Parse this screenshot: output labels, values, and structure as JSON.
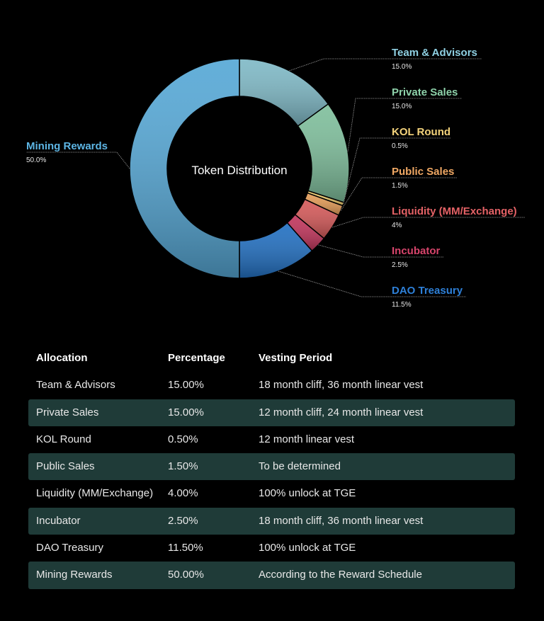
{
  "chart_data": {
    "type": "pie",
    "subtype": "donut",
    "title": "Token Distribution",
    "start_angle": "top",
    "direction": "clockwise",
    "slices": [
      {
        "label": "Team & Advisors",
        "value": 15.0,
        "display": "15.0%",
        "color": "#7fb9c6",
        "label_color": "#8fd0e2"
      },
      {
        "label": "Private Sales",
        "value": 15.0,
        "display": "15.0%",
        "color": "#7fbf9c",
        "label_color": "#8fd3ab"
      },
      {
        "label": "KOL Round",
        "value": 0.5,
        "display": "0.5%",
        "color": "#f0cd6c",
        "label_color": "#f5d47c"
      },
      {
        "label": "Public Sales",
        "value": 1.5,
        "display": "1.5%",
        "color": "#e59d58",
        "label_color": "#f0a864"
      },
      {
        "label": "Liquidity (MM/Exchange)",
        "value": 4,
        "display": "4%",
        "color": "#d65a5a",
        "label_color": "#e46266"
      },
      {
        "label": "Incubator",
        "value": 2.5,
        "display": "2.5%",
        "color": "#c2355c",
        "label_color": "#d8456c"
      },
      {
        "label": "DAO Treasury",
        "value": 11.5,
        "display": "11.5%",
        "color": "#2270c2",
        "label_color": "#2e80d8"
      },
      {
        "label": "Mining Rewards",
        "value": 50.0,
        "display": "50.0%",
        "color": "#56a8d6",
        "label_color": "#5db5e4"
      }
    ]
  },
  "table": {
    "headers": [
      "Allocation",
      "Percentage",
      "Vesting Period"
    ],
    "rows": [
      [
        "Team & Advisors",
        "15.00%",
        "18 month cliff, 36 month linear vest"
      ],
      [
        "Private Sales",
        "15.00%",
        "12 month cliff, 24 month linear vest"
      ],
      [
        "KOL Round",
        "0.50%",
        "12 month linear vest"
      ],
      [
        "Public Sales",
        "1.50%",
        "To be determined"
      ],
      [
        "Liquidity (MM/Exchange)",
        "4.00%",
        "100% unlock at TGE"
      ],
      [
        "Incubator",
        "2.50%",
        "18 month cliff, 36 month linear vest"
      ],
      [
        "DAO Treasury",
        "11.50%",
        "100% unlock at TGE"
      ],
      [
        "Mining Rewards",
        "50.00%",
        "According to the Reward Schedule"
      ]
    ],
    "stripe_color": "#1f3b38"
  }
}
